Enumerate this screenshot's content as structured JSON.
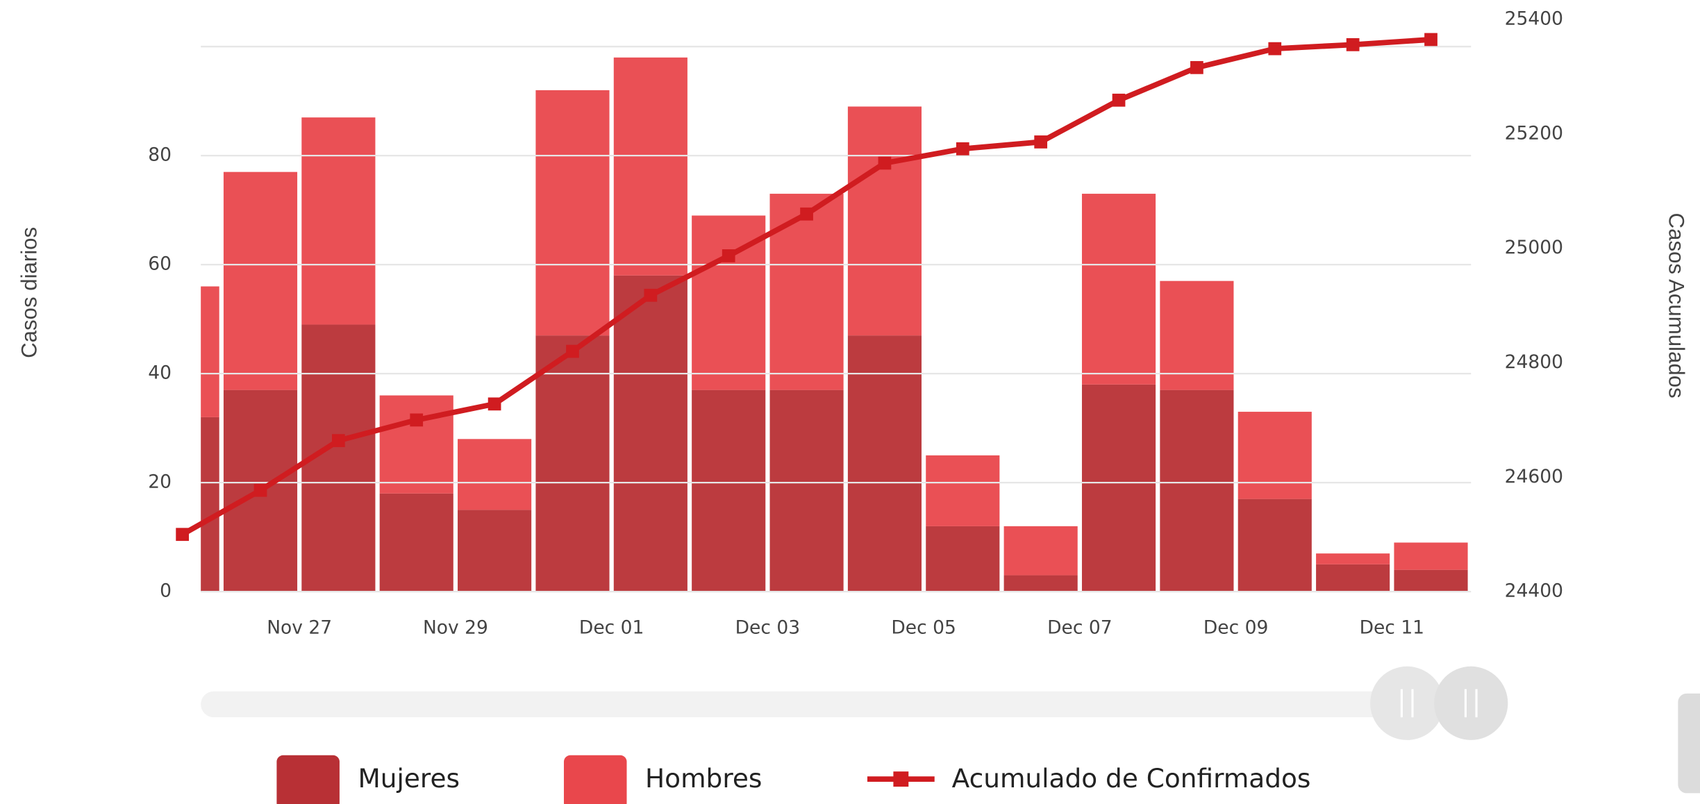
{
  "chart_data": {
    "type": "bar",
    "stacked": true,
    "categories": [
      null,
      "Nov 27",
      null,
      "Nov 29",
      null,
      "Dec 01",
      null,
      "Dec 03",
      null,
      "Dec 05",
      null,
      "Dec 07",
      null,
      "Dec 09",
      null,
      "Dec 11",
      null
    ],
    "series": [
      {
        "name": "Mujeres",
        "color": "#b83035",
        "values": [
          32,
          37,
          49,
          18,
          15,
          47,
          58,
          37,
          37,
          47,
          12,
          3,
          38,
          37,
          17,
          5,
          4
        ]
      },
      {
        "name": "Hombres",
        "color": "#e9474c",
        "values": [
          24,
          40,
          38,
          18,
          13,
          45,
          40,
          32,
          36,
          42,
          13,
          9,
          35,
          20,
          16,
          2,
          5
        ]
      },
      {
        "name": "Acumulado de Confirmados",
        "color": "#d01c20",
        "type": "line",
        "axis": "y2",
        "values": [
          24500,
          24577,
          24664,
          24700,
          24728,
          24820,
          24918,
          24987,
          25060,
          25149,
          25174,
          25186,
          25259,
          25316,
          25349,
          25356,
          25365
        ]
      }
    ],
    "ylabel": "Casos diarios",
    "y2label": "Casos Acumulados",
    "ylim": [
      0,
      100
    ],
    "yticks": [
      0,
      20,
      40,
      60,
      80
    ],
    "y2lim": [
      24400,
      25400
    ],
    "y2ticks": [
      24400,
      24600,
      24800,
      25000,
      25200,
      25400
    ],
    "grid": true,
    "legend": "bottom"
  }
}
